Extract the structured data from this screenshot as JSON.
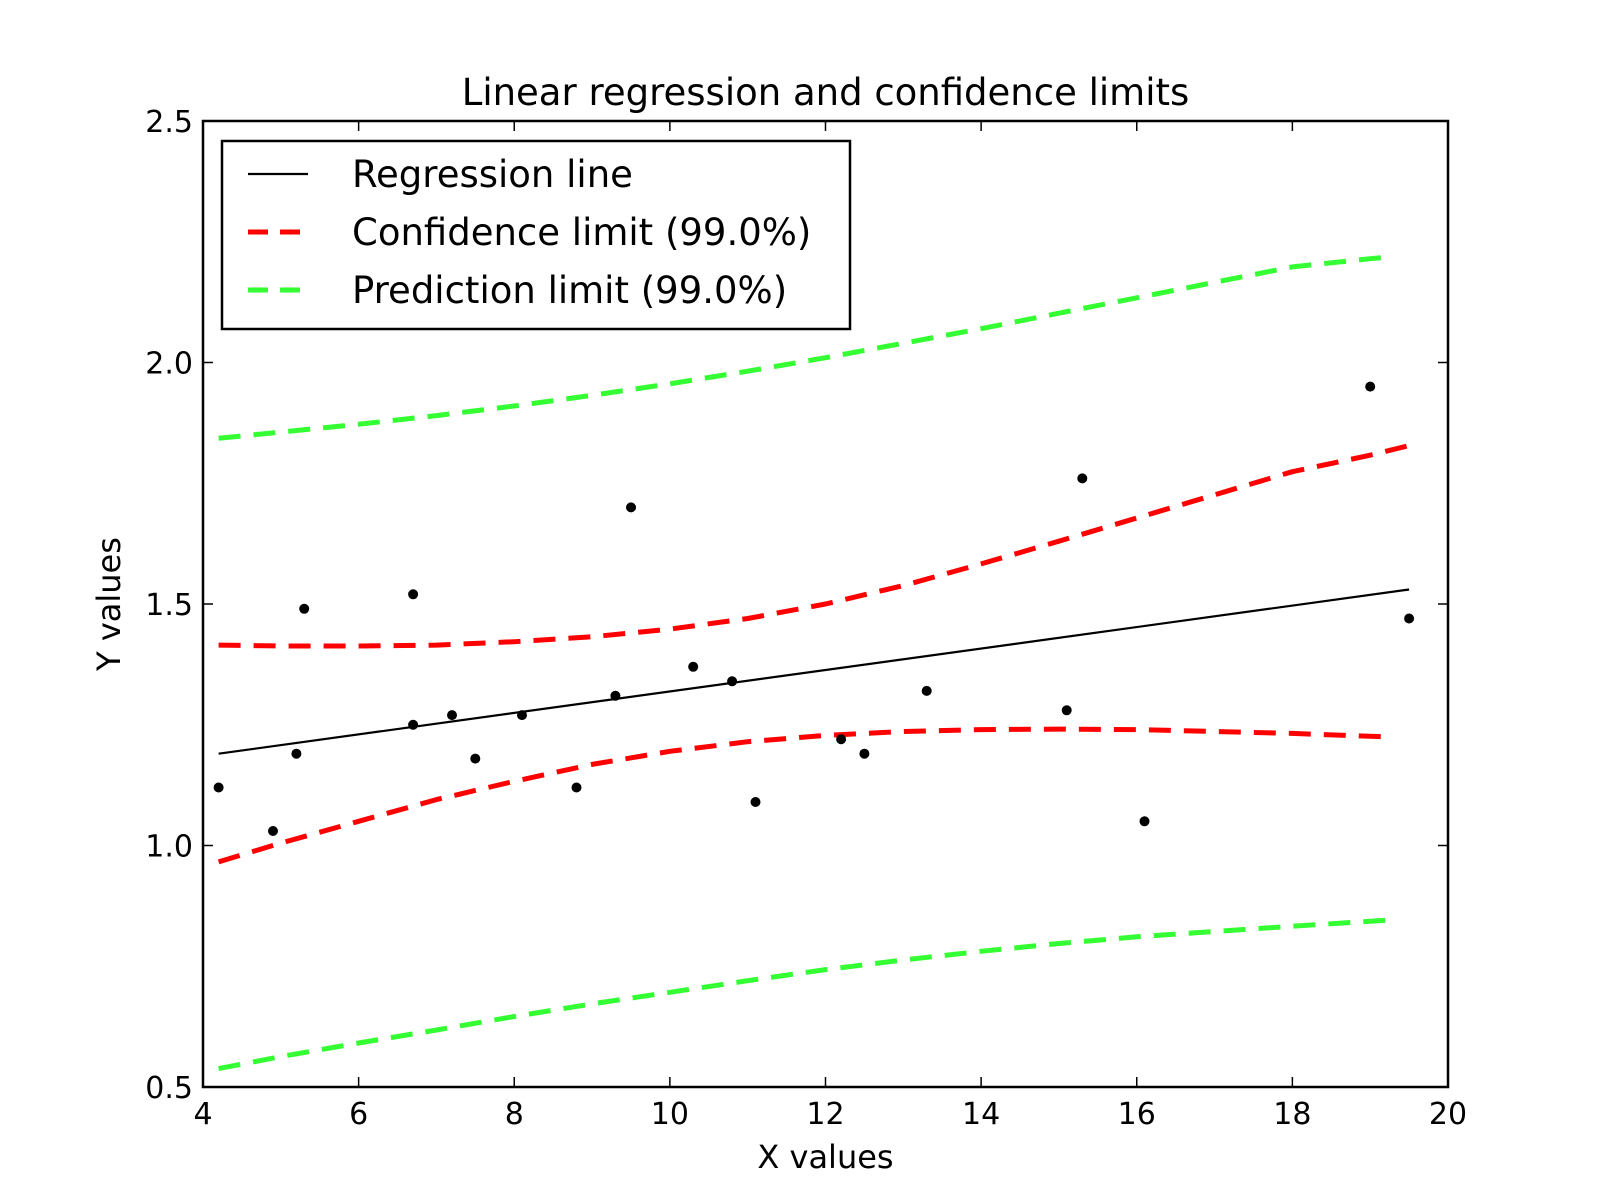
{
  "chart_data": {
    "type": "scatter",
    "title": "Linear regression and confidence limits",
    "xlabel": "X values",
    "ylabel": "Y values",
    "xlim": [
      4,
      20
    ],
    "ylim": [
      0.5,
      2.5
    ],
    "xticks": [
      4,
      6,
      8,
      10,
      12,
      14,
      16,
      18,
      20
    ],
    "yticks": [
      0.5,
      1.0,
      1.5,
      2.0,
      2.5
    ],
    "xtick_labels": [
      "4",
      "6",
      "8",
      "10",
      "12",
      "14",
      "16",
      "18",
      "20"
    ],
    "ytick_labels": [
      "0.5",
      "1.0",
      "1.5",
      "2.0",
      "2.5"
    ],
    "grid": false,
    "legend_position": "top-left",
    "legend": [
      {
        "label": "Regression line",
        "style": "solid",
        "color": "#000000"
      },
      {
        "label": "Confidence limit (99.0%)",
        "style": "dashed",
        "color": "#ff0000"
      },
      {
        "label": "Prediction limit (99.0%)",
        "style": "dashed",
        "color": "#33ff33"
      }
    ],
    "points": {
      "x": [
        4.2,
        4.9,
        5.2,
        5.3,
        6.7,
        6.7,
        7.2,
        7.5,
        8.1,
        8.8,
        9.3,
        9.5,
        10.3,
        10.8,
        11.1,
        12.2,
        12.5,
        13.3,
        15.1,
        15.3,
        16.1,
        19.0,
        19.5
      ],
      "y": [
        1.12,
        1.03,
        1.19,
        1.49,
        1.52,
        1.25,
        1.27,
        1.18,
        1.27,
        1.12,
        1.31,
        1.7,
        1.37,
        1.34,
        1.09,
        1.22,
        1.19,
        1.32,
        1.28,
        1.76,
        1.05,
        1.95,
        1.47
      ],
      "color": "#000000"
    },
    "series": [
      {
        "name": "Regression line",
        "color": "#000000",
        "x": [
          4.2,
          19.5
        ],
        "y": [
          1.19,
          1.53
        ]
      },
      {
        "name": "Confidence limit (99.0%)",
        "color": "#ff0000",
        "x": [
          4.2,
          5.0,
          6.0,
          7.0,
          8.0,
          9.0,
          10.0,
          11.0,
          12.0,
          13.0,
          14.0,
          15.0,
          16.0,
          17.0,
          18.0,
          19.0,
          19.5
        ],
        "y": [
          1.415,
          1.413,
          1.413,
          1.415,
          1.422,
          1.432,
          1.448,
          1.47,
          1.5,
          1.538,
          1.583,
          1.63,
          1.678,
          1.726,
          1.774,
          1.808,
          1.828
        ]
      },
      {
        "name": "Confidence limit (99.0%) lower",
        "color": "#ff0000",
        "x": [
          4.2,
          5.0,
          6.0,
          7.0,
          8.0,
          9.0,
          10.0,
          11.0,
          12.0,
          13.0,
          14.0,
          15.0,
          16.0,
          17.0,
          18.0,
          19.0,
          19.2
        ],
        "y": [
          0.966,
          1.005,
          1.05,
          1.095,
          1.133,
          1.168,
          1.195,
          1.215,
          1.228,
          1.236,
          1.24,
          1.241,
          1.24,
          1.236,
          1.232,
          1.226,
          1.225
        ]
      },
      {
        "name": "Prediction limit (99.0%)",
        "color": "#33ff33",
        "x": [
          4.2,
          5.0,
          6.0,
          7.0,
          8.0,
          9.0,
          10.0,
          11.0,
          12.0,
          13.0,
          14.0,
          15.0,
          16.0,
          17.0,
          18.0,
          19.0,
          19.3
        ],
        "y": [
          1.843,
          1.856,
          1.872,
          1.89,
          1.91,
          1.932,
          1.956,
          1.982,
          2.01,
          2.04,
          2.07,
          2.102,
          2.134,
          2.166,
          2.198,
          2.215,
          2.219
        ]
      },
      {
        "name": "Prediction limit (99.0%) lower",
        "color": "#33ff33",
        "x": [
          4.2,
          5.0,
          6.0,
          7.0,
          8.0,
          9.0,
          10.0,
          11.0,
          12.0,
          13.0,
          14.0,
          15.0,
          16.0,
          17.0,
          18.0,
          19.0,
          19.3
        ],
        "y": [
          0.538,
          0.563,
          0.591,
          0.618,
          0.646,
          0.672,
          0.696,
          0.72,
          0.743,
          0.763,
          0.781,
          0.797,
          0.811,
          0.822,
          0.833,
          0.843,
          0.846
        ]
      }
    ]
  }
}
